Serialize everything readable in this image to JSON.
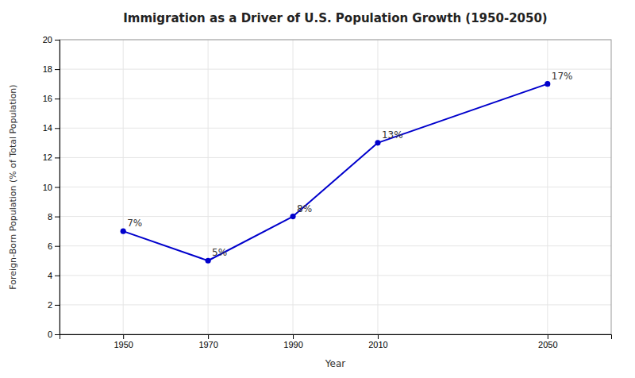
{
  "chart_data": {
    "type": "line",
    "title": "Immigration as a Driver of U.S. Population Growth (1950-2050)",
    "xlabel": "Year",
    "ylabel": "Foreign-Born Population (% of Total Population)",
    "x": [
      1950,
      1970,
      1990,
      2010,
      2050
    ],
    "values": [
      7,
      5,
      8,
      13,
      17
    ],
    "value_labels": [
      "7%",
      "5%",
      "8%",
      "13%",
      "17%"
    ],
    "data_labels": true,
    "color": "#0000CC",
    "marker": "circle",
    "xlim": [
      1935,
      2065
    ],
    "xticks": [
      1950,
      1970,
      1990,
      2010,
      2050
    ],
    "ylim": [
      0,
      20
    ],
    "yticks": [
      0,
      2,
      4,
      6,
      8,
      10,
      12,
      14,
      16,
      18,
      20
    ],
    "grid": true
  }
}
